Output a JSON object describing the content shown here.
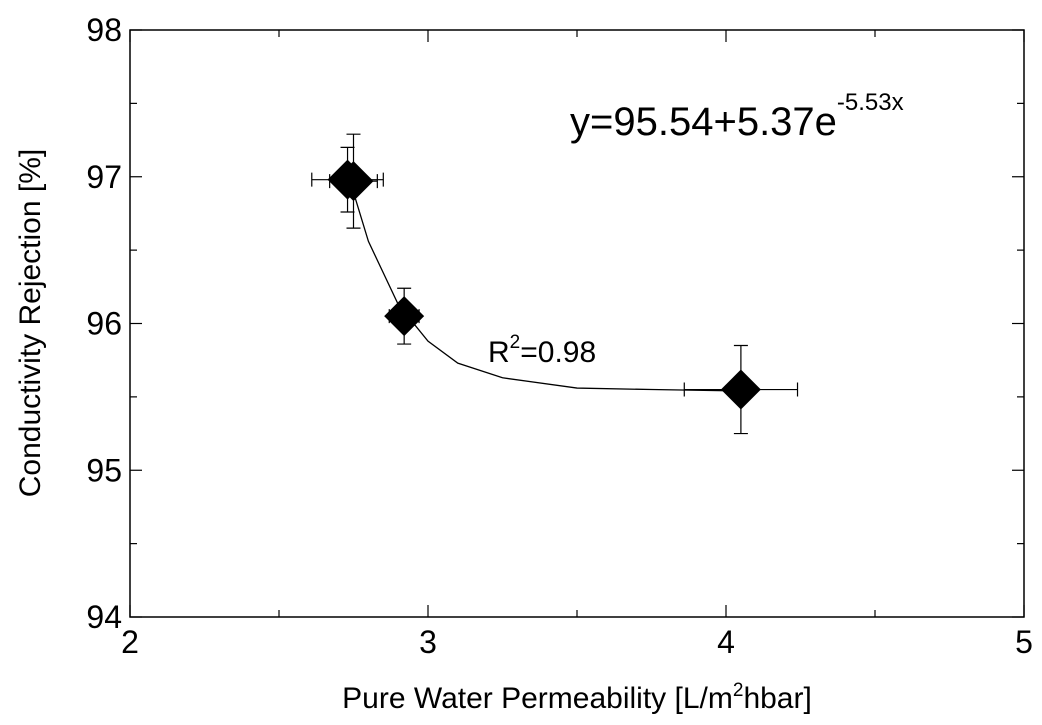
{
  "chart_data": {
    "type": "scatter",
    "x_label": [
      "Pure Water Permeability [L/m",
      "2",
      "hbar]"
    ],
    "y_label": "Conductivity Rejection [%]",
    "equation": [
      "y=95.54+5.37e",
      "-5.53x"
    ],
    "r_squared": [
      "R",
      "2",
      "=0.98"
    ],
    "color": "#000000",
    "series": [
      {
        "x": [
          2.73,
          2.75,
          2.92,
          4.05
        ],
        "y": [
          96.98,
          96.97,
          96.05,
          95.55
        ],
        "xerr": [
          0.12,
          0.08,
          0.05,
          0.19
        ],
        "yerr": [
          0.22,
          0.32,
          0.19,
          0.3
        ]
      }
    ],
    "fit_curve": {
      "x": [
        2.74,
        2.8,
        2.9,
        3.0,
        3.1,
        3.25,
        3.5,
        3.75,
        4.05
      ],
      "y": [
        96.96,
        96.56,
        96.13,
        95.88,
        95.73,
        95.63,
        95.56,
        95.55,
        95.54
      ]
    },
    "xlim": [
      2,
      5
    ],
    "ylim": [
      94,
      98
    ],
    "xticks": [
      2,
      3,
      4,
      5
    ],
    "yticks": [
      94,
      95,
      96,
      97,
      98
    ],
    "xminor": [
      2.5,
      3.5,
      4.5
    ],
    "yminor": [
      94.5,
      95.5,
      96.5,
      97.5
    ]
  }
}
